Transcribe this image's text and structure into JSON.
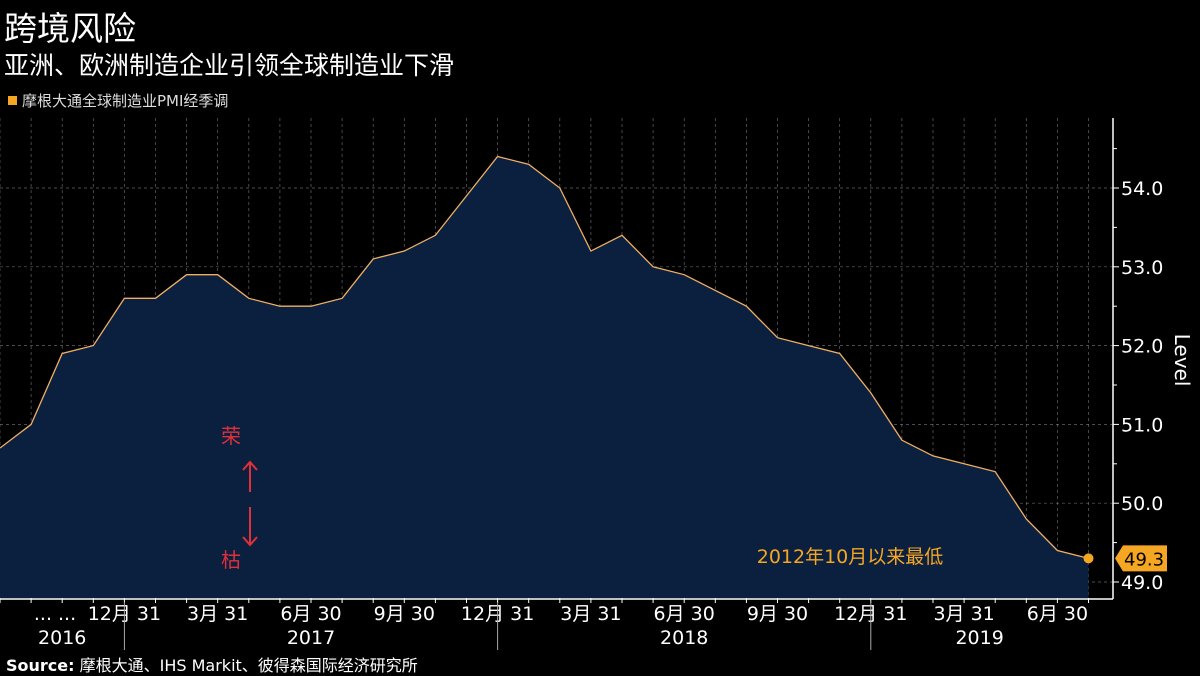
{
  "title": "跨境风险",
  "subtitle": "亚洲、欧洲制造企业引领全球制造业下滑",
  "legend": {
    "label": "摩根大通全球制造业PMI经季调",
    "color": "#f5a623"
  },
  "source": {
    "prefix": "Source:",
    "text": "摩根大通、IHS Markit、彼得森国际经济研究所"
  },
  "annotations": {
    "boom": "荣",
    "bust": "枯",
    "low_note": "2012年10月以来最低",
    "last_value": "49.3"
  },
  "colors": {
    "background": "#000000",
    "fill": "#0b1f3f",
    "line": "#f0b060",
    "accent": "#f5a623",
    "annotation_red": "#e0303a",
    "grid": "#8a8f99"
  },
  "chart_data": {
    "type": "area",
    "title": "跨境风险",
    "subtitle": "亚洲、欧洲制造企业引领全球制造业下滑",
    "ylabel": "Level",
    "ylim": [
      48.8,
      54.9
    ],
    "y_ticks": [
      "49.0",
      "50.0",
      "51.0",
      "52.0",
      "53.0",
      "54.0"
    ],
    "y_axis_side": "right",
    "grid": true,
    "x_start": "2016-08",
    "x_end": "2019-07",
    "x_tick_labels": [
      "... ...",
      "12月 31",
      "3月 31",
      "6月 30",
      "9月 30",
      "12月 31",
      "3月 31",
      "6月 30",
      "9月 30",
      "12月 31",
      "3月 31",
      "6月 30"
    ],
    "x_tick_dates": [
      "",
      "2016-12",
      "2017-03",
      "2017-06",
      "2017-09",
      "2017-12",
      "2018-03",
      "2018-06",
      "2018-09",
      "2018-12",
      "2019-03",
      "2019-06"
    ],
    "x_year_labels": [
      {
        "label": "2016",
        "from": "2016-08",
        "to": "2016-12"
      },
      {
        "label": "2017",
        "from": "2016-12",
        "to": "2017-12"
      },
      {
        "label": "2018",
        "from": "2017-12",
        "to": "2018-12"
      },
      {
        "label": "2019",
        "from": "2018-12",
        "to": "2019-07"
      }
    ],
    "series": [
      {
        "name": "摩根大通全球制造业PMI经季调",
        "x": [
          "2016-08",
          "2016-09",
          "2016-10",
          "2016-11",
          "2016-12",
          "2017-01",
          "2017-02",
          "2017-03",
          "2017-04",
          "2017-05",
          "2017-06",
          "2017-07",
          "2017-08",
          "2017-09",
          "2017-10",
          "2017-11",
          "2017-12",
          "2018-01",
          "2018-02",
          "2018-03",
          "2018-04",
          "2018-05",
          "2018-06",
          "2018-07",
          "2018-08",
          "2018-09",
          "2018-10",
          "2018-11",
          "2018-12",
          "2019-01",
          "2019-02",
          "2019-03",
          "2019-04",
          "2019-05",
          "2019-06",
          "2019-07"
        ],
        "values": [
          50.7,
          51.0,
          51.9,
          52.0,
          52.6,
          52.6,
          52.9,
          52.9,
          52.6,
          52.5,
          52.5,
          52.6,
          53.1,
          53.2,
          53.4,
          53.9,
          54.4,
          54.3,
          54.0,
          53.2,
          53.4,
          53.0,
          52.9,
          52.7,
          52.5,
          52.1,
          52.0,
          51.9,
          51.4,
          50.8,
          50.6,
          50.5,
          50.4,
          49.8,
          49.4,
          49.3
        ]
      }
    ]
  }
}
